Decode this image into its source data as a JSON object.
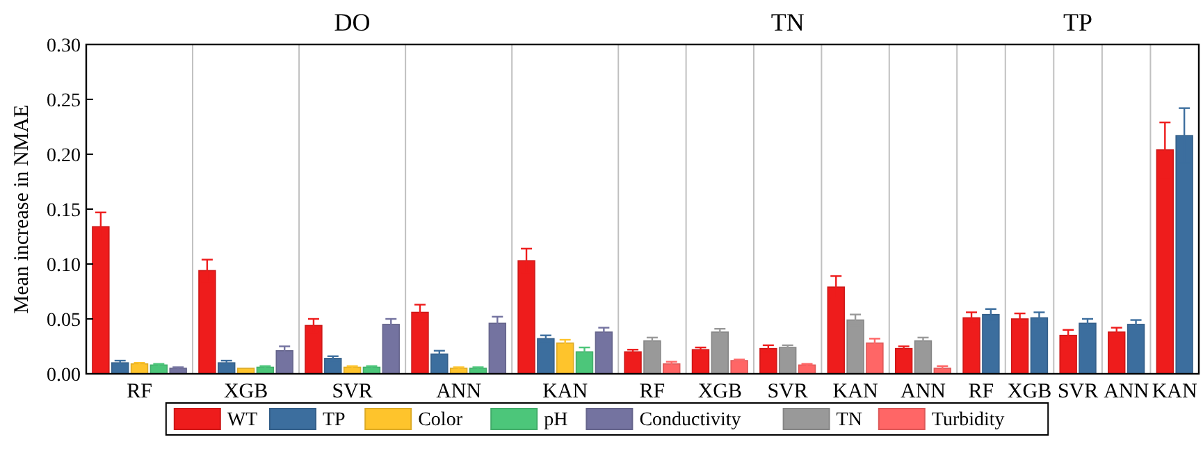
{
  "chart_data": {
    "type": "bar",
    "ylabel": "Mean increase in NMAE",
    "categories": [
      "RF",
      "XGB",
      "SVR",
      "ANN",
      "KAN",
      "RF",
      "XGB",
      "SVR",
      "KAN",
      "ANN",
      "RF",
      "XGB",
      "SVR",
      "ANN",
      "KAN"
    ],
    "annotations": [
      "DO",
      "TN",
      "TP"
    ],
    "series": [
      {
        "name": "WT",
        "color": "#ee1c1c",
        "values": [
          0.134,
          0.094,
          0.044,
          0.056,
          0.103,
          0.02,
          0.022,
          0.023,
          0.079,
          0.023,
          0.051,
          0.05,
          0.035,
          0.038,
          0.204
        ],
        "errors": [
          0.013,
          0.01,
          0.006,
          0.007,
          0.011,
          0.002,
          0.002,
          0.003,
          0.01,
          0.002,
          0.005,
          0.005,
          0.005,
          0.004,
          0.025
        ]
      },
      {
        "name": "TP",
        "color": "#3c6e9e",
        "values": [
          0.01,
          0.01,
          0.014,
          0.018,
          0.032,
          null,
          null,
          null,
          null,
          null,
          0.054,
          0.051,
          0.046,
          0.045,
          0.217
        ],
        "errors": [
          0.002,
          0.002,
          0.002,
          0.003,
          0.003,
          null,
          null,
          null,
          null,
          null,
          0.005,
          0.005,
          0.004,
          0.004,
          0.025
        ]
      },
      {
        "name": "Color",
        "color": "#fec42c",
        "values": [
          0.009,
          0.005,
          0.006,
          0.005,
          0.028,
          null,
          null,
          null,
          null,
          null,
          null,
          null,
          null,
          null,
          null
        ],
        "errors": [
          0.001,
          null,
          0.001,
          0.001,
          0.003,
          null,
          null,
          null,
          null,
          null,
          null,
          null,
          null,
          null,
          null
        ]
      },
      {
        "name": "pH",
        "color": "#4cc67a",
        "values": [
          0.008,
          0.006,
          0.006,
          0.005,
          0.02,
          null,
          null,
          null,
          null,
          null,
          null,
          null,
          null,
          null,
          null
        ],
        "errors": [
          0.001,
          0.001,
          0.001,
          0.001,
          0.004,
          null,
          null,
          null,
          null,
          null,
          null,
          null,
          null,
          null,
          null
        ]
      },
      {
        "name": "Conductivity",
        "color": "#7473a0",
        "values": [
          0.005,
          0.021,
          0.045,
          0.046,
          0.038,
          null,
          null,
          null,
          null,
          null,
          null,
          null,
          null,
          null,
          null
        ],
        "errors": [
          0.001,
          0.004,
          0.005,
          0.006,
          0.004,
          null,
          null,
          null,
          null,
          null,
          null,
          null,
          null,
          null,
          null
        ]
      },
      {
        "name": "TN",
        "color": "#999999",
        "values": [
          null,
          null,
          null,
          null,
          null,
          0.03,
          0.038,
          0.024,
          0.049,
          0.03,
          null,
          null,
          null,
          null,
          null
        ],
        "errors": [
          null,
          null,
          null,
          null,
          null,
          0.003,
          0.003,
          0.002,
          0.005,
          0.003,
          null,
          null,
          null,
          null,
          null
        ]
      },
      {
        "name": "Turbidity",
        "color": "#ff6666",
        "values": [
          null,
          null,
          null,
          null,
          null,
          0.009,
          0.012,
          0.008,
          0.028,
          0.005,
          null,
          null,
          null,
          null,
          null
        ],
        "errors": [
          null,
          null,
          null,
          null,
          null,
          0.002,
          0.001,
          0.001,
          0.004,
          0.002,
          null,
          null,
          null,
          null,
          null
        ]
      }
    ],
    "ylim": [
      0,
      0.3
    ],
    "yticks": [
      {
        "value": 0,
        "label": "0.00"
      },
      {
        "value": 0.05,
        "label": "0.05"
      },
      {
        "value": 0.1,
        "label": "0.10"
      },
      {
        "value": 0.15,
        "label": "0.15"
      },
      {
        "value": 0.2,
        "label": "0.20"
      },
      {
        "value": 0.25,
        "label": "0.25"
      },
      {
        "value": 0.3,
        "label": "0.30"
      }
    ],
    "grid": "x",
    "legend": "bottom"
  }
}
